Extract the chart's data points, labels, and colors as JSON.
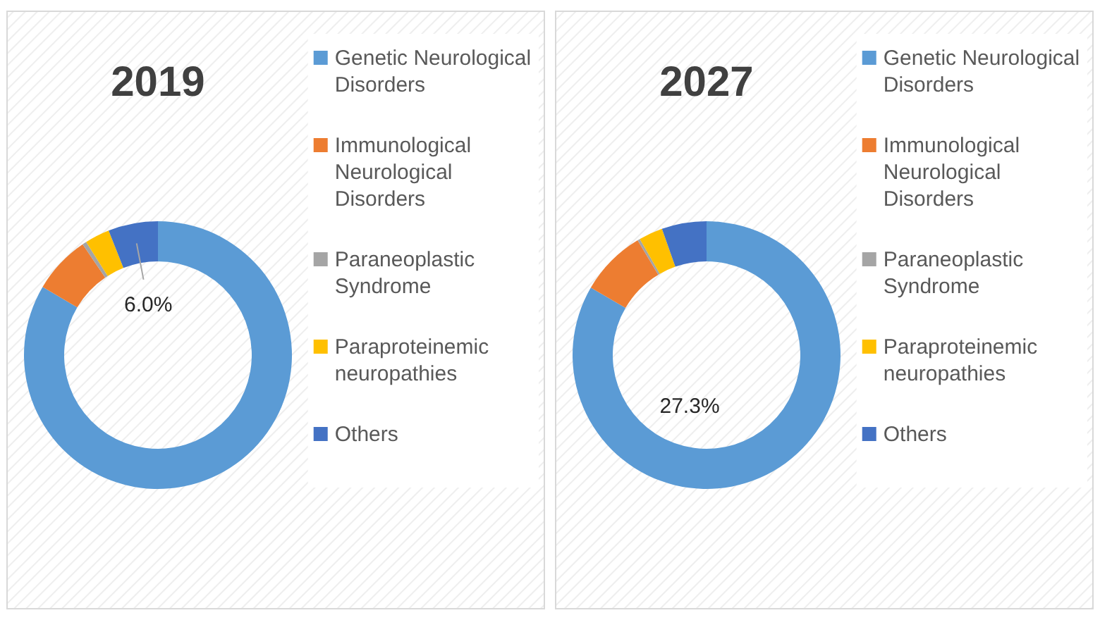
{
  "chart_data": [
    {
      "type": "donut",
      "title": "2019",
      "categories": [
        "Genetic Neurological Disorders",
        "Immunological Neurological Disorders",
        "Paraneoplastic Syndrome",
        "Paraproteinemic neuropathies",
        "Others"
      ],
      "values": [
        83.5,
        7.0,
        0.5,
        3.0,
        6.0
      ],
      "colors": [
        "#5b9bd5",
        "#ed7d31",
        "#a5a5a5",
        "#ffc000",
        "#4472c4"
      ],
      "value_labels": [
        null,
        null,
        null,
        null,
        "6.0%"
      ],
      "legend": "right"
    },
    {
      "type": "donut",
      "title": "2027",
      "categories": [
        "Genetic Neurological Disorders",
        "Immunological Neurological Disorders",
        "Paraneoplastic Syndrome",
        "Paraproteinemic neuropathies",
        "Others"
      ],
      "values": [
        83.4,
        8.0,
        0.3,
        2.9,
        5.4
      ],
      "colors": [
        "#5b9bd5",
        "#ed7d31",
        "#a5a5a5",
        "#ffc000",
        "#4472c4"
      ],
      "annotations": [
        "27.3%"
      ],
      "legend": "right"
    }
  ]
}
